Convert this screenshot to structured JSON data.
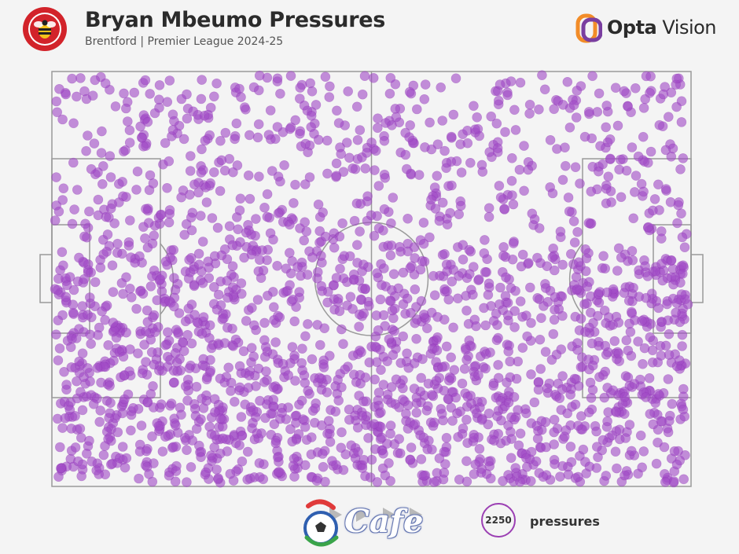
{
  "header": {
    "title": "Bryan Mbeumo Pressures",
    "subtitle": "Brentford | Premier League 2024-25",
    "crest_icon": "brentford-bee-crest",
    "brand": {
      "name_bold": "Opta",
      "name_regular": "Vision",
      "logo_icon": "opta-logo"
    }
  },
  "legend": {
    "count": "2250",
    "label": "pressures",
    "direction_icon": "play-direction-arrows-icon"
  },
  "watermark": {
    "text": "Cafe",
    "icon": "soccer-ball-icon"
  },
  "colors": {
    "marker": "#a24cc7",
    "marker_stroke": "#8a2fae",
    "pitch_lines": "#9a9a9a",
    "background": "#f4f4f4",
    "crest_red": "#d2232a",
    "brand_orange": "#f28c28",
    "brand_purple": "#7a3ea0"
  },
  "chart_data": {
    "type": "scatter",
    "title": "Bryan Mbeumo Pressures",
    "subtitle": "Brentford | Premier League 2024-25",
    "total_points": 2250,
    "x_range": [
      0,
      100
    ],
    "y_range": [
      0,
      100
    ],
    "point_density_by_y_band": [
      {
        "y_from": 0,
        "y_to": 35,
        "share": 0.46
      },
      {
        "y_from": 35,
        "y_to": 55,
        "share": 0.24
      },
      {
        "y_from": 55,
        "y_to": 80,
        "share": 0.17
      },
      {
        "y_from": 80,
        "y_to": 100,
        "share": 0.13
      }
    ],
    "seed": 20245
  }
}
